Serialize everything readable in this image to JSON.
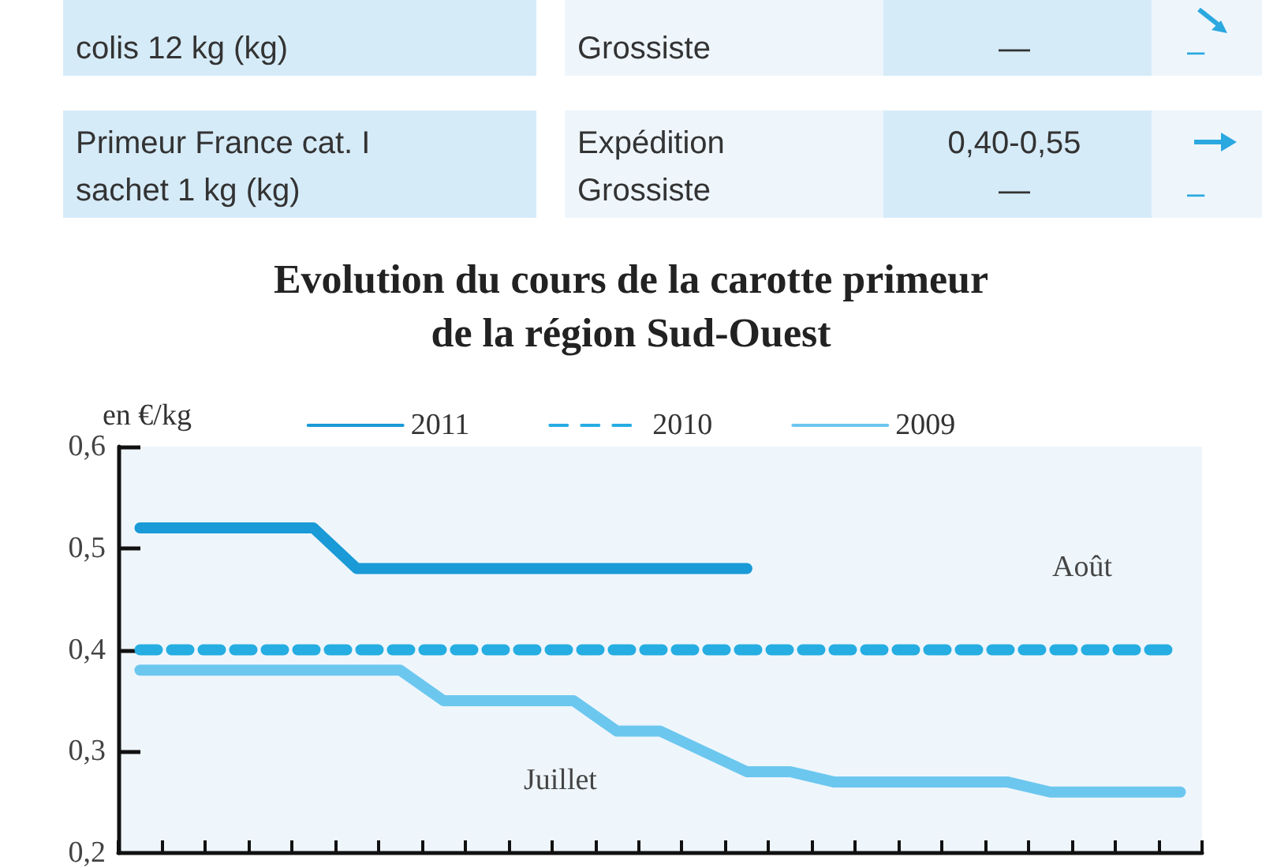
{
  "chart_data": {
    "type": "line",
    "title": "Evolution du cours de la carotte primeur\nde la région Sud-Ouest",
    "ylabel": "en €/kg",
    "annotations": [
      "colis 12 kg (kg)",
      "Grossiste",
      "—",
      "–",
      "Primeur France cat. I\nsachet 1 kg (kg)",
      "Expédition\nGrossiste",
      "0,40-0,55\n—",
      "–",
      "Juillet",
      "Août"
    ],
    "categories": [
      null,
      null,
      null,
      null,
      null,
      null,
      null,
      null,
      null,
      null,
      null,
      null,
      null,
      null,
      null,
      null,
      null,
      null,
      null,
      null,
      null,
      null,
      null,
      null,
      null
    ],
    "series": [
      {
        "name": "2011",
        "color": "#1a9ad6",
        "line_style": "solid",
        "values": [
          0.52,
          0.52,
          0.52,
          0.52,
          0.52,
          0.48,
          0.48,
          0.48,
          0.48,
          0.48,
          0.48,
          0.48,
          0.48,
          0.48,
          0.48,
          null,
          null,
          null,
          null,
          null,
          null,
          null,
          null,
          null,
          null
        ]
      },
      {
        "name": "2010",
        "color": "#26ade2",
        "line_style": "dashed",
        "values": [
          0.4,
          0.4,
          0.4,
          0.4,
          0.4,
          0.4,
          0.4,
          0.4,
          0.4,
          0.4,
          0.4,
          0.4,
          0.4,
          0.4,
          0.4,
          0.4,
          0.4,
          0.4,
          0.4,
          0.4,
          0.4,
          0.4,
          0.4,
          0.4,
          0.4
        ]
      },
      {
        "name": "2009",
        "color": "#6cc7ef",
        "line_style": "solid",
        "values": [
          0.38,
          0.38,
          0.38,
          0.38,
          0.38,
          0.38,
          0.38,
          0.35,
          0.35,
          0.35,
          0.35,
          0.32,
          0.32,
          0.3,
          0.28,
          0.28,
          0.27,
          0.27,
          0.27,
          0.27,
          0.27,
          0.26,
          0.26,
          0.26,
          0.26
        ]
      }
    ],
    "ylim": [
      0.2,
      0.6
    ],
    "yticks": [
      {
        "value": 0.2,
        "label": "0,2"
      },
      {
        "value": 0.3,
        "label": "0,3"
      },
      {
        "value": 0.4,
        "label": "0,4"
      },
      {
        "value": 0.5,
        "label": "0,5"
      },
      {
        "value": 0.6,
        "label": "0,6"
      }
    ],
    "tick_labels": "y",
    "grid": false,
    "legend": "top"
  }
}
